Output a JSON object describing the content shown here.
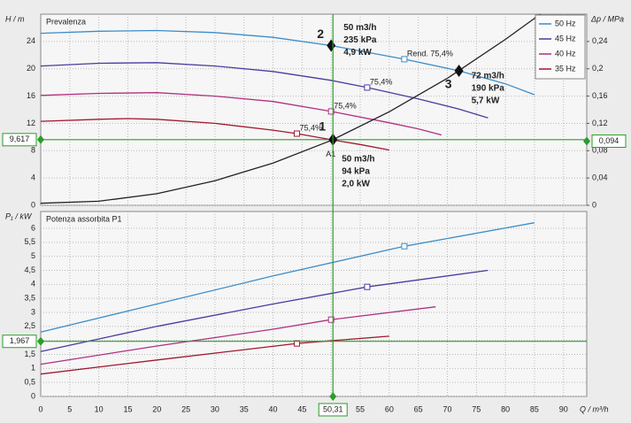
{
  "chart_data": [
    {
      "type": "line",
      "title": "Prevalenza",
      "ylabel": "H / m",
      "y2label": "Δp / MPa",
      "xlim": [
        0,
        94
      ],
      "ylim": [
        0,
        28
      ],
      "yticks": [
        0,
        4,
        8,
        12,
        16,
        20,
        24
      ],
      "y2lim": [
        0,
        0.28
      ],
      "y2ticks": [
        0,
        {
          "value": 0.04,
          "label": "0,04"
        },
        {
          "value": 0.08,
          "label": "0,08"
        },
        {
          "value": 0.12,
          "label": "0,12"
        },
        {
          "value": 0.16,
          "label": "0,16"
        },
        {
          "value": 0.2,
          "label": "0,2"
        },
        {
          "value": 0.24,
          "label": "0,24"
        }
      ],
      "grid": true,
      "legend": "upper right",
      "series": [
        {
          "name": "50 Hz",
          "color": "#3c8dc8",
          "x": [
            0,
            10,
            20,
            30,
            40,
            50,
            62.6,
            72,
            80,
            85
          ],
          "values": [
            25.2,
            25.5,
            25.6,
            25.3,
            24.6,
            23.4,
            21.4,
            19.7,
            17.8,
            16.2
          ]
        },
        {
          "name": "45 Hz",
          "color": "#4b3aa0",
          "x": [
            0,
            10,
            20,
            30,
            40,
            50,
            56.2,
            65,
            72,
            77
          ],
          "values": [
            20.4,
            20.8,
            20.9,
            20.4,
            19.6,
            18.3,
            17.25,
            15.6,
            14.1,
            12.8
          ]
        },
        {
          "name": "40 Hz",
          "color": "#b03080",
          "x": [
            0,
            10,
            20,
            30,
            40,
            50,
            60,
            65,
            69
          ],
          "values": [
            16.1,
            16.4,
            16.5,
            16.0,
            15.2,
            13.75,
            12.1,
            11.2,
            10.3
          ]
        },
        {
          "name": "35 Hz",
          "color": "#a0182e",
          "x": [
            0,
            10,
            15,
            20,
            30,
            40,
            44.1,
            50,
            55,
            60
          ],
          "values": [
            12.3,
            12.6,
            12.7,
            12.6,
            12.0,
            11.0,
            10.5,
            9.6,
            8.9,
            8.1
          ]
        },
        {
          "color": "#222222",
          "x": [
            0,
            10,
            20,
            30,
            40,
            50,
            60,
            70,
            80,
            86
          ],
          "values": [
            0.3,
            0.6,
            1.7,
            3.6,
            6.2,
            9.5,
            13.7,
            18.6,
            24.3,
            28
          ]
        }
      ],
      "markers": [
        {
          "x": 62.6,
          "y": 21.4,
          "label": "Rend.  75,4%",
          "color": "#3c8dc8"
        },
        {
          "x": 56.2,
          "y": 17.25,
          "label": "75,4%",
          "color": "#4b3aa0"
        },
        {
          "x": 50,
          "y": 13.75,
          "label": "75,4%",
          "color": "#b03080"
        },
        {
          "x": 44.1,
          "y": 10.5,
          "label": "75,4%",
          "color": "#a0182e"
        }
      ],
      "points": [
        {
          "label": "1",
          "x": 50.31,
          "y": 9.617,
          "text": [
            "50 m3/h",
            "94 kPa",
            "2,0 kW"
          ]
        },
        {
          "label": "2",
          "x": 50,
          "y": 23.4,
          "text": [
            "50 m3/h",
            "235 kPa",
            "4,9 kW"
          ]
        },
        {
          "label": "3",
          "x": 72,
          "y": 19.7,
          "text": [
            "72 m3/h",
            "190 kPa",
            "5,7 kW"
          ]
        }
      ],
      "op": {
        "y": {
          "value": 9.617,
          "label": "9,617"
        },
        "y2": {
          "value": 0.094,
          "label": "0,094"
        },
        "point_label": "A1"
      }
    },
    {
      "type": "line",
      "title": "Potenza assorbita P1",
      "ylabel": "P₁ / kW",
      "xlabel": "Q / m³/h",
      "xlim": [
        0,
        94
      ],
      "ylim": [
        0,
        6.6
      ],
      "xticks": [
        0,
        5,
        10,
        15,
        20,
        25,
        30,
        35,
        40,
        45,
        50,
        55,
        60,
        65,
        70,
        75,
        80,
        85,
        90
      ],
      "yticks": [
        0,
        {
          "value": 0.5,
          "label": "0,5"
        },
        1,
        {
          "value": 1.5,
          "label": "1,5"
        },
        2,
        {
          "value": 2.5,
          "label": "2,5"
        },
        3,
        {
          "value": 3.5,
          "label": "3,5"
        },
        4,
        {
          "value": 4.5,
          "label": "4,5"
        },
        5,
        {
          "value": 5.5,
          "label": "5,5"
        },
        6
      ],
      "grid": true,
      "series": [
        {
          "color": "#3c8dc8",
          "x": [
            0,
            20,
            40,
            62.6,
            85
          ],
          "values": [
            2.3,
            3.3,
            4.3,
            5.36,
            6.2
          ]
        },
        {
          "color": "#4b3aa0",
          "x": [
            0,
            20,
            40,
            56.2,
            77
          ],
          "values": [
            1.6,
            2.5,
            3.3,
            3.91,
            4.5
          ]
        },
        {
          "color": "#b03080",
          "x": [
            0,
            20,
            40,
            50,
            68
          ],
          "values": [
            1.15,
            1.8,
            2.4,
            2.74,
            3.2
          ]
        },
        {
          "color": "#a0182e",
          "x": [
            0,
            20,
            44.1,
            60
          ],
          "values": [
            0.8,
            1.3,
            1.89,
            2.15
          ]
        }
      ],
      "markers": [
        {
          "x": 62.6,
          "y": 5.36,
          "color": "#3c8dc8"
        },
        {
          "x": 56.2,
          "y": 3.91,
          "color": "#4b3aa0"
        },
        {
          "x": 50,
          "y": 2.74,
          "color": "#b03080"
        },
        {
          "x": 44.1,
          "y": 1.89,
          "color": "#a0182e"
        }
      ],
      "op": {
        "x": {
          "value": 50.31,
          "label": "50,31"
        },
        "y": {
          "value": 1.967,
          "label": "1,967"
        }
      }
    }
  ]
}
